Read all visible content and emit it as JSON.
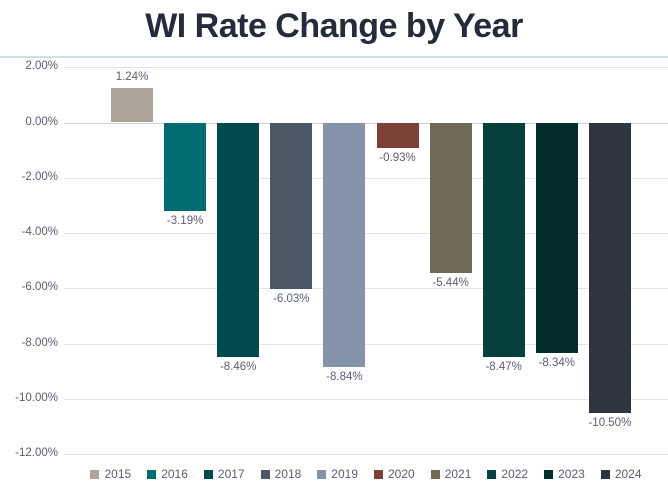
{
  "title": "WI Rate Change by Year",
  "colors": {
    "title": "#262B3B",
    "label": "#5A5E76",
    "gridline": "#E4E4EA",
    "zero_line": "#D4D4DC",
    "divider": "#CDE0E2",
    "background": "#FFFFFF"
  },
  "chart_data": {
    "type": "bar",
    "title": "WI Rate Change by Year",
    "categories": [
      "2015",
      "2016",
      "2017",
      "2018",
      "2019",
      "2020",
      "2021",
      "2022",
      "2023",
      "2024"
    ],
    "values": [
      1.24,
      -3.19,
      -8.46,
      -6.03,
      -8.84,
      -0.93,
      -5.44,
      -8.47,
      -8.34,
      -10.5
    ],
    "data_labels": [
      "1.24%",
      "-3.19%",
      "-8.46%",
      "-6.03%",
      "-8.84%",
      "-0.93%",
      "-5.44%",
      "-8.47%",
      "-8.34%",
      "-10.50%"
    ],
    "bar_colors": [
      "#ACA69A",
      "#006B70",
      "#004A4E",
      "#4C5765",
      "#8593A8",
      "#7C4238",
      "#6E6959",
      "#05403F",
      "#032E2C",
      "#2E3440"
    ],
    "xlabel": "",
    "ylabel": "",
    "ylim": [
      -12,
      2
    ],
    "ytick_step": 2,
    "ytick_labels": [
      "2.00%",
      "0.00%",
      "-2.00%",
      "-4.00%",
      "-6.00%",
      "-8.00%",
      "-10.00%",
      "-12.00%"
    ],
    "grid": true,
    "legend_position": "bottom"
  }
}
